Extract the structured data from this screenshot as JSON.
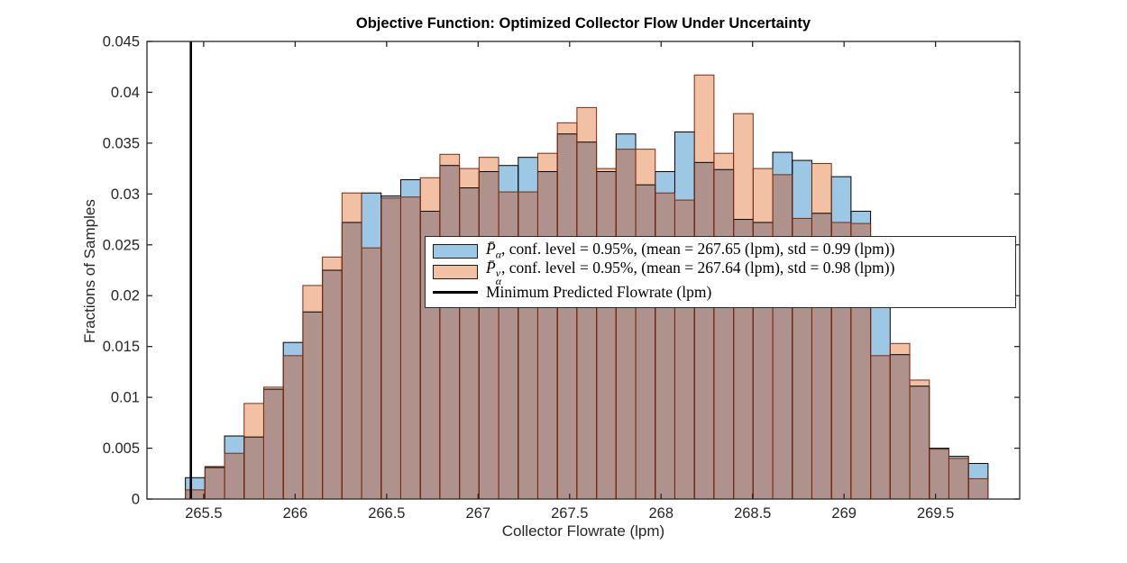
{
  "chart": {
    "title": "Objective Function: Optimized Collector Flow Under Uncertainty",
    "xlabel": "Collector Flowrate (lpm)",
    "ylabel": "Fractions of Samples"
  },
  "legend": {
    "rows": [
      {
        "sym": "P̄",
        "sub": "α",
        "sup": "",
        "rest": ", conf. level = 0.95%, (mean = 267.65 (lpm), std = 0.99 (lpm))"
      },
      {
        "sym": "P̄",
        "sub": "α",
        "sup": "v",
        "rest": ", conf. level = 0.95%, (mean = 267.64 (lpm), std = 0.98 (lpm))"
      },
      {
        "label": "Minimum Predicted Flowrate (lpm)"
      }
    ]
  },
  "chart_data": {
    "type": "bar",
    "subtype": "overlaid-histogram",
    "title": "Objective Function: Optimized Collector Flow Under Uncertainty",
    "xlabel": "Collector Flowrate (lpm)",
    "ylabel": "Fractions of Samples",
    "xlim": [
      265.19,
      269.96
    ],
    "ylim": [
      0,
      0.045
    ],
    "grid": false,
    "legend_position": "inside-upper-middle",
    "x_ticks": [
      265.5,
      266,
      266.5,
      267,
      267.5,
      268,
      268.5,
      269,
      269.5
    ],
    "x_tick_labels": [
      "265.5",
      "266",
      "266.5",
      "267",
      "267.5",
      "268",
      "268.5",
      "269",
      "269.5"
    ],
    "y_ticks": [
      0,
      0.005,
      0.01,
      0.015,
      0.02,
      0.025,
      0.03,
      0.035,
      0.04,
      0.045
    ],
    "y_tick_labels": [
      "0",
      "0.005",
      "0.01",
      "0.015",
      "0.02",
      "0.025",
      "0.03",
      "0.035",
      "0.04",
      "0.045"
    ],
    "bin_start": 265.4,
    "bin_width": 0.107,
    "series": [
      {
        "name": "P_alpha, conf. level = 0.95%, (mean = 267.65 (lpm), std = 0.99 (lpm))",
        "mean_lpm": 267.65,
        "std_lpm": 0.99,
        "fill": "#9CC7E5",
        "edge": "#000000",
        "values": [
          0.0021,
          0.0031,
          0.0062,
          0.0061,
          0.0108,
          0.0154,
          0.0184,
          0.0225,
          0.0272,
          0.0301,
          0.0298,
          0.0314,
          0.0283,
          0.0328,
          0.0306,
          0.0322,
          0.0328,
          0.0336,
          0.0322,
          0.0359,
          0.0351,
          0.0322,
          0.0359,
          0.0309,
          0.0322,
          0.0361,
          0.0331,
          0.0324,
          0.0275,
          0.0272,
          0.0341,
          0.0333,
          0.0281,
          0.0317,
          0.0283,
          0.019,
          0.0142,
          0.0111,
          0.005,
          0.0042,
          0.0035
        ]
      },
      {
        "name": "P_alpha^v, conf. level = 0.95%, (mean = 267.64 (lpm), std = 0.98 (lpm))",
        "mean_lpm": 267.64,
        "std_lpm": 0.98,
        "fill": "#F2C1A4",
        "edge": "#7A2A0E",
        "values": [
          0.0009,
          0.0032,
          0.0045,
          0.0094,
          0.011,
          0.0141,
          0.021,
          0.0238,
          0.0301,
          0.0247,
          0.0296,
          0.0297,
          0.0316,
          0.0339,
          0.0325,
          0.0336,
          0.0302,
          0.0302,
          0.034,
          0.037,
          0.0385,
          0.0325,
          0.0344,
          0.0344,
          0.0301,
          0.0294,
          0.0417,
          0.034,
          0.0379,
          0.0325,
          0.0319,
          0.0276,
          0.033,
          0.0272,
          0.0271,
          0.0141,
          0.0153,
          0.0117,
          0.0049,
          0.004,
          0.002
        ]
      }
    ],
    "overlap_fill": "#AF928C",
    "vline": {
      "x": 265.43,
      "color": "#000000",
      "label": "Minimum Predicted Flowrate (lpm)"
    },
    "axis_color": "#262626"
  }
}
